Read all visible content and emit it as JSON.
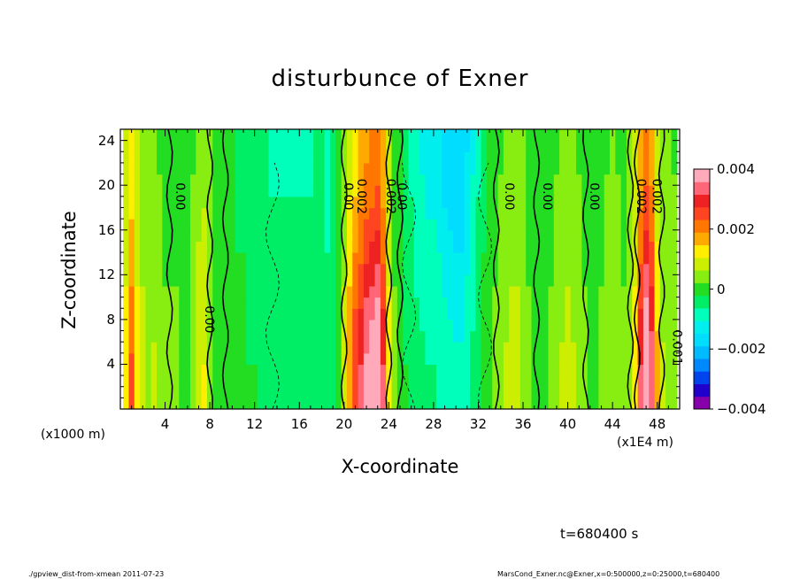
{
  "chart_data": {
    "type": "heatmap",
    "title": "disturbunce of Exner",
    "xlabel": "X-coordinate",
    "ylabel": "Z-coordinate",
    "x_unit": "(x1E4 m)",
    "y_unit": "(x1000 m)",
    "xlim": [
      0,
      50
    ],
    "ylim": [
      0,
      25
    ],
    "x_ticks": [
      4,
      8,
      12,
      16,
      20,
      24,
      28,
      32,
      36,
      40,
      44,
      48
    ],
    "y_ticks": [
      4,
      8,
      12,
      16,
      20,
      24
    ],
    "colorbar": {
      "range": [
        -0.004,
        0.004
      ],
      "tick_values": [
        0.004,
        0.002,
        0,
        -0.002,
        -0.004
      ],
      "tick_labels": [
        "0.004",
        "0.002",
        "0",
        "−0.002",
        "−0.004"
      ],
      "colors": [
        "#8800aa",
        "#2200cc",
        "#0044ee",
        "#0088ff",
        "#00bbff",
        "#00ddff",
        "#00eeee",
        "#00ffbb",
        "#00ee66",
        "#22dd22",
        "#88ee11",
        "#ccee00",
        "#ffee00",
        "#ffaa00",
        "#ff7700",
        "#ff4422",
        "#ee2222",
        "#ff6677",
        "#ffaabb"
      ]
    },
    "columns": [
      {
        "x": 0.5,
        "v": 0.001
      },
      {
        "x": 1.0,
        "v": 0.0018
      },
      {
        "x": 1.5,
        "v": 0.001
      },
      {
        "x": 2.0,
        "v": 0.0006
      },
      {
        "x": 2.5,
        "v": 0.0004
      },
      {
        "x": 3.0,
        "v": 0.0005
      },
      {
        "x": 3.5,
        "v": 0.0003
      },
      {
        "x": 4.0,
        "v": 0.0002
      },
      {
        "x": 4.5,
        "v": 0.0002
      },
      {
        "x": 5.0,
        "v": 0.0002
      },
      {
        "x": 5.5,
        "v": 0.0001
      },
      {
        "x": 6.0,
        "v": 0.0001
      },
      {
        "x": 6.5,
        "v": 0.0003
      },
      {
        "x": 7.0,
        "v": 0.0007
      },
      {
        "x": 7.5,
        "v": 0.0008
      },
      {
        "x": 8.0,
        "v": 0.0004
      },
      {
        "x": 8.5,
        "v": 0.0001
      },
      {
        "x": 9.0,
        "v": 0.0
      },
      {
        "x": 9.5,
        "v": 0.0001
      },
      {
        "x": 10.0,
        "v": -0.0001
      },
      {
        "x": 10.5,
        "v": -0.0002
      },
      {
        "x": 11.0,
        "v": -0.0002
      },
      {
        "x": 11.5,
        "v": -0.0003
      },
      {
        "x": 12.0,
        "v": -0.0003
      },
      {
        "x": 12.5,
        "v": -0.0004
      },
      {
        "x": 13.0,
        "v": -0.0004
      },
      {
        "x": 13.5,
        "v": -0.0005
      },
      {
        "x": 14.0,
        "v": -0.0005
      },
      {
        "x": 14.5,
        "v": -0.0005
      },
      {
        "x": 15.0,
        "v": -0.0005
      },
      {
        "x": 15.5,
        "v": -0.0005
      },
      {
        "x": 16.0,
        "v": -0.0005
      },
      {
        "x": 16.5,
        "v": -0.0005
      },
      {
        "x": 17.0,
        "v": -0.0005
      },
      {
        "x": 17.5,
        "v": -0.0004
      },
      {
        "x": 18.0,
        "v": -0.0004
      },
      {
        "x": 18.5,
        "v": -0.0006
      },
      {
        "x": 19.0,
        "v": -0.0004
      },
      {
        "x": 19.5,
        "v": -0.0001
      },
      {
        "x": 20.0,
        "v": 0.0006
      },
      {
        "x": 20.5,
        "v": 0.0014
      },
      {
        "x": 21.0,
        "v": 0.002
      },
      {
        "x": 21.5,
        "v": 0.0024
      },
      {
        "x": 22.0,
        "v": 0.0028
      },
      {
        "x": 22.5,
        "v": 0.003
      },
      {
        "x": 23.0,
        "v": 0.0032
      },
      {
        "x": 23.5,
        "v": 0.0024
      },
      {
        "x": 24.0,
        "v": 0.001
      },
      {
        "x": 24.5,
        "v": 0.0002
      },
      {
        "x": 25.0,
        "v": 0.0
      },
      {
        "x": 25.5,
        "v": -0.0003
      },
      {
        "x": 26.0,
        "v": -0.0005
      },
      {
        "x": 26.5,
        "v": -0.0007
      },
      {
        "x": 27.0,
        "v": -0.0008
      },
      {
        "x": 27.5,
        "v": -0.0009
      },
      {
        "x": 28.0,
        "v": -0.0009
      },
      {
        "x": 28.5,
        "v": -0.001
      },
      {
        "x": 29.0,
        "v": -0.0012
      },
      {
        "x": 29.5,
        "v": -0.0013
      },
      {
        "x": 30.0,
        "v": -0.0014
      },
      {
        "x": 30.5,
        "v": -0.0014
      },
      {
        "x": 31.0,
        "v": -0.0011
      },
      {
        "x": 31.5,
        "v": -0.0008
      },
      {
        "x": 32.0,
        "v": -0.0005
      },
      {
        "x": 32.5,
        "v": -0.0002
      },
      {
        "x": 33.0,
        "v": 0.0
      },
      {
        "x": 33.5,
        "v": 0.0002
      },
      {
        "x": 34.0,
        "v": 0.0003
      },
      {
        "x": 34.5,
        "v": 0.0005
      },
      {
        "x": 35.0,
        "v": 0.0006
      },
      {
        "x": 35.5,
        "v": 0.0006
      },
      {
        "x": 36.0,
        "v": 0.0004
      },
      {
        "x": 36.5,
        "v": 0.0002
      },
      {
        "x": 37.0,
        "v": 0.0001
      },
      {
        "x": 37.5,
        "v": 0.0001
      },
      {
        "x": 38.0,
        "v": 0.0001
      },
      {
        "x": 38.5,
        "v": 0.0002
      },
      {
        "x": 39.0,
        "v": 0.0003
      },
      {
        "x": 39.5,
        "v": 0.0005
      },
      {
        "x": 40.0,
        "v": 0.0006
      },
      {
        "x": 40.5,
        "v": 0.0005
      },
      {
        "x": 41.0,
        "v": 0.0003
      },
      {
        "x": 41.5,
        "v": 0.0002
      },
      {
        "x": 42.0,
        "v": 0.0001
      },
      {
        "x": 42.5,
        "v": 0.0001
      },
      {
        "x": 43.0,
        "v": 0.0002
      },
      {
        "x": 43.5,
        "v": 0.0003
      },
      {
        "x": 44.0,
        "v": 0.0004
      },
      {
        "x": 44.5,
        "v": 0.0003
      },
      {
        "x": 45.0,
        "v": 0.0002
      },
      {
        "x": 45.5,
        "v": 0.0004
      },
      {
        "x": 46.0,
        "v": 0.001
      },
      {
        "x": 46.5,
        "v": 0.0024
      },
      {
        "x": 47.0,
        "v": 0.0032
      },
      {
        "x": 47.5,
        "v": 0.0026
      },
      {
        "x": 48.0,
        "v": 0.0012
      },
      {
        "x": 48.5,
        "v": 0.0005
      },
      {
        "x": 49.0,
        "v": 0.0004
      },
      {
        "x": 49.5,
        "v": 0.0003
      }
    ],
    "contour_labels": [
      {
        "x": 5.0,
        "z": 19,
        "text": "0.00"
      },
      {
        "x": 7.6,
        "z": 8,
        "text": "0.00"
      },
      {
        "x": 20.0,
        "z": 19,
        "text": "0.00"
      },
      {
        "x": 21.2,
        "z": 19,
        "text": "0.002"
      },
      {
        "x": 23.8,
        "z": 19,
        "text": "0.002"
      },
      {
        "x": 24.8,
        "z": 19,
        "text": "0.00"
      },
      {
        "x": 34.4,
        "z": 19,
        "text": "0.00"
      },
      {
        "x": 37.8,
        "z": 19,
        "text": "0.00"
      },
      {
        "x": 42.0,
        "z": 19,
        "text": "0.00"
      },
      {
        "x": 46.2,
        "z": 19,
        "text": "0.002"
      },
      {
        "x": 47.6,
        "z": 19,
        "text": "0.002"
      },
      {
        "x": 49.4,
        "z": 5.5,
        "text": "0.001"
      }
    ],
    "solid_contours_x": [
      4.4,
      8.0,
      9.4,
      20.0,
      24.0,
      25.0,
      33.6,
      37.2,
      41.6,
      45.6,
      46.2,
      48.4
    ],
    "dashed_contours_x": [
      13.6,
      25.8,
      32.6
    ]
  },
  "time_label": "t=680400 s",
  "footer_left": "./gpview_dist-from-xmean  2011-07-23",
  "footer_right": "MarsCond_Exner.nc@Exner,x=0:500000,z=0:25000,t=680400"
}
